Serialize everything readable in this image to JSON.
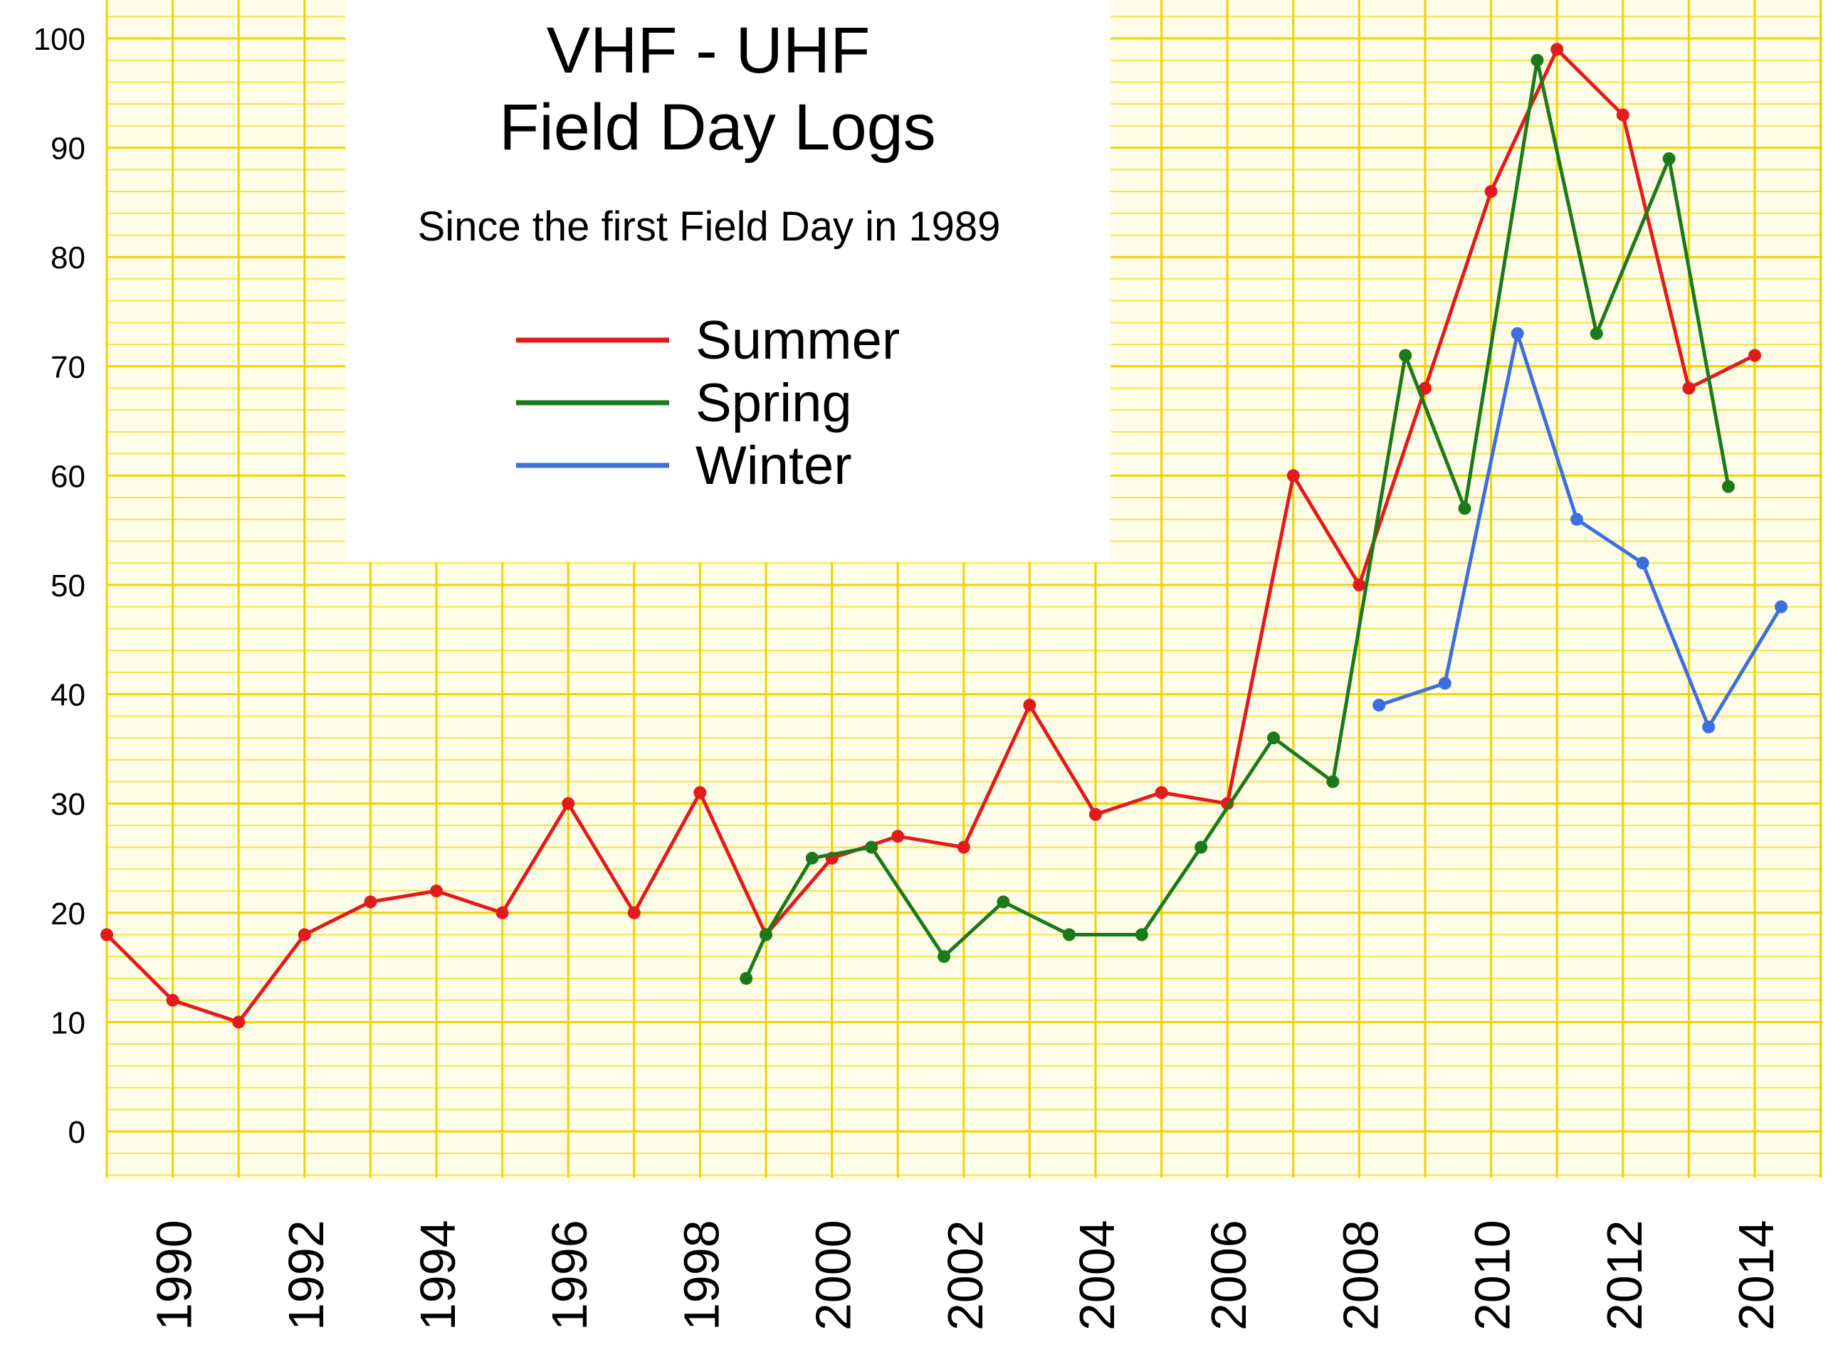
{
  "chart_data": {
    "type": "line",
    "title_lines": [
      "VHF - UHF",
      "Field Day Logs"
    ],
    "subtitle": "Since the first Field Day in 1989",
    "ylim": [
      0,
      100
    ],
    "xlim": [
      1989,
      2014.5
    ],
    "y_ticks": [
      "0",
      "10",
      "20",
      "30",
      "40",
      "50",
      "60",
      "70",
      "80",
      "90",
      "100"
    ],
    "x_ticks": [
      "1990",
      "1992",
      "1994",
      "1996",
      "1998",
      "2000",
      "2002",
      "2004",
      "2006",
      "2008",
      "2010",
      "2012",
      "2014"
    ],
    "legend_position": "top-center",
    "grid": true,
    "series": [
      {
        "name": "Summer",
        "color": "#e31a1c",
        "points": [
          [
            1989,
            18
          ],
          [
            1990,
            12
          ],
          [
            1991,
            10
          ],
          [
            1992,
            18
          ],
          [
            1993,
            21
          ],
          [
            1994,
            22
          ],
          [
            1995,
            20
          ],
          [
            1996,
            30
          ],
          [
            1997,
            20
          ],
          [
            1998,
            31
          ],
          [
            1999,
            18
          ],
          [
            2000,
            25
          ],
          [
            2001,
            27
          ],
          [
            2002,
            26
          ],
          [
            2003,
            39
          ],
          [
            2004,
            29
          ],
          [
            2005,
            31
          ],
          [
            2006,
            30
          ],
          [
            2007,
            60
          ],
          [
            2008,
            50
          ],
          [
            2009,
            68
          ],
          [
            2010,
            86
          ],
          [
            2011,
            99
          ],
          [
            2012,
            93
          ],
          [
            2013,
            68
          ],
          [
            2014,
            71
          ]
        ]
      },
      {
        "name": "Spring",
        "color": "#1a7a1a",
        "points": [
          [
            1998.7,
            14
          ],
          [
            1999,
            18
          ],
          [
            1999.7,
            25
          ],
          [
            2000.6,
            26
          ],
          [
            2001.7,
            16
          ],
          [
            2002.6,
            21
          ],
          [
            2003.6,
            18
          ],
          [
            2004.7,
            18
          ],
          [
            2005.6,
            26
          ],
          [
            2006.7,
            36
          ],
          [
            2007.6,
            32
          ],
          [
            2008.7,
            71
          ],
          [
            2009.6,
            57
          ],
          [
            2010.7,
            98
          ],
          [
            2011.6,
            73
          ],
          [
            2012.7,
            89
          ],
          [
            2013.6,
            59
          ]
        ]
      },
      {
        "name": "Winter",
        "color": "#3b6fe0",
        "points": [
          [
            2008.3,
            39
          ],
          [
            2009.3,
            41
          ],
          [
            2010.4,
            73
          ],
          [
            2011.3,
            56
          ],
          [
            2012.3,
            52
          ],
          [
            2013.3,
            37
          ],
          [
            2014.4,
            48
          ]
        ]
      }
    ]
  }
}
